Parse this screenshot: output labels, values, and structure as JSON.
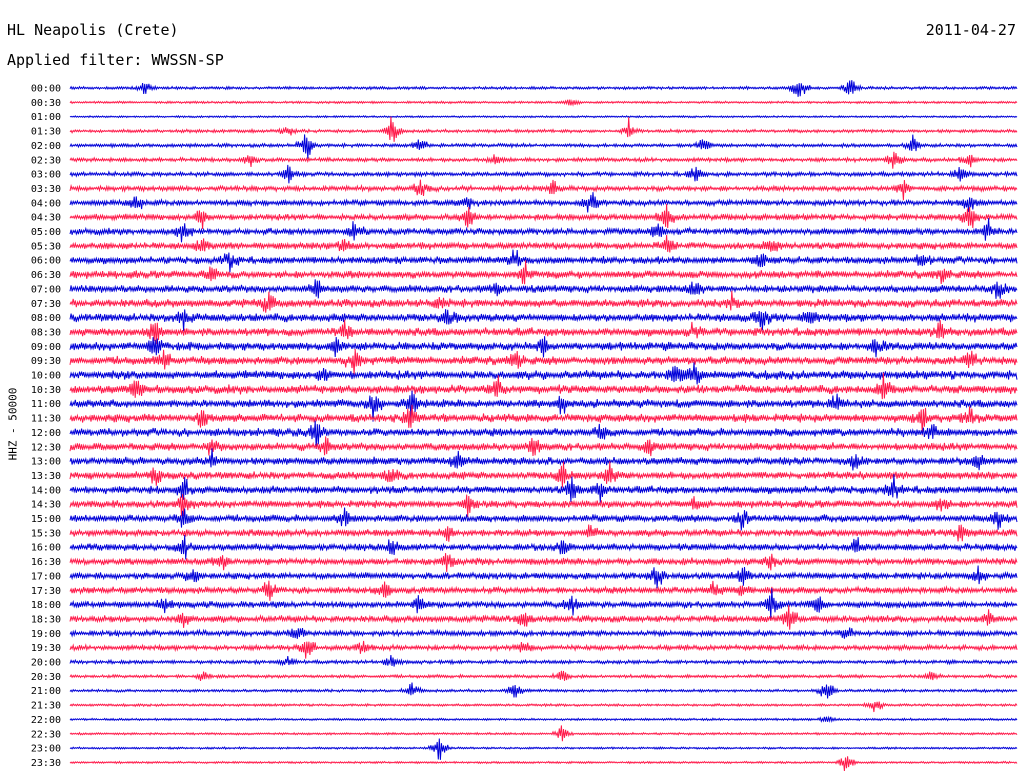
{
  "header": {
    "station": "HL Neapolis (Crete)",
    "filter": "Applied filter: WWSSN-SP",
    "date": "2011-04-27"
  },
  "chart_data": {
    "type": "line",
    "ylabel": "HHZ - 50000",
    "colors": [
      "#0000d8",
      "#ff1a4a"
    ],
    "rows": [
      {
        "label": "00:00",
        "level": 0.2,
        "events": [
          [
            0.08,
            0.5
          ],
          [
            0.77,
            1.0
          ],
          [
            0.825,
            1.0
          ]
        ]
      },
      {
        "label": "00:30",
        "level": 0.12,
        "events": [
          [
            0.53,
            0.4
          ]
        ]
      },
      {
        "label": "01:00",
        "level": 0.08,
        "events": []
      },
      {
        "label": "01:30",
        "level": 0.25,
        "events": [
          [
            0.23,
            0.4
          ],
          [
            0.34,
            0.9
          ],
          [
            0.59,
            0.7
          ]
        ]
      },
      {
        "label": "02:00",
        "level": 0.3,
        "events": [
          [
            0.25,
            1.2
          ],
          [
            0.37,
            0.5
          ],
          [
            0.67,
            0.6
          ],
          [
            0.89,
            0.6
          ]
        ]
      },
      {
        "label": "02:30",
        "level": 0.35,
        "events": [
          [
            0.19,
            0.6
          ],
          [
            0.45,
            0.4
          ],
          [
            0.87,
            0.8
          ],
          [
            0.95,
            0.6
          ]
        ]
      },
      {
        "label": "03:00",
        "level": 0.4,
        "events": [
          [
            0.23,
            0.6
          ],
          [
            0.66,
            0.6
          ],
          [
            0.94,
            0.6
          ]
        ]
      },
      {
        "label": "03:30",
        "level": 0.5,
        "events": [
          [
            0.37,
            0.7
          ],
          [
            0.51,
            0.5
          ],
          [
            0.88,
            0.6
          ]
        ]
      },
      {
        "label": "04:00",
        "level": 0.6,
        "events": [
          [
            0.07,
            0.7
          ],
          [
            0.42,
            0.7
          ],
          [
            0.55,
            0.9
          ],
          [
            0.95,
            0.6
          ]
        ]
      },
      {
        "label": "04:30",
        "level": 0.65,
        "events": [
          [
            0.14,
            0.9
          ],
          [
            0.42,
            0.8
          ],
          [
            0.63,
            0.8
          ],
          [
            0.95,
            1.0
          ]
        ]
      },
      {
        "label": "05:00",
        "level": 0.7,
        "events": [
          [
            0.12,
            0.8
          ],
          [
            0.3,
            0.7
          ],
          [
            0.62,
            0.6
          ],
          [
            0.97,
            0.8
          ]
        ]
      },
      {
        "label": "05:30",
        "level": 0.75,
        "events": [
          [
            0.14,
            0.6
          ],
          [
            0.29,
            0.7
          ],
          [
            0.63,
            0.6
          ],
          [
            0.74,
            0.6
          ]
        ]
      },
      {
        "label": "06:00",
        "level": 0.8,
        "events": [
          [
            0.17,
            0.6
          ],
          [
            0.47,
            0.7
          ],
          [
            0.73,
            0.6
          ],
          [
            0.9,
            0.6
          ]
        ]
      },
      {
        "label": "06:30",
        "level": 0.85,
        "events": [
          [
            0.15,
            0.7
          ],
          [
            0.48,
            0.7
          ],
          [
            0.92,
            0.6
          ]
        ]
      },
      {
        "label": "07:00",
        "level": 0.85,
        "events": [
          [
            0.26,
            0.7
          ],
          [
            0.45,
            0.6
          ],
          [
            0.66,
            0.6
          ],
          [
            0.98,
            0.6
          ]
        ]
      },
      {
        "label": "07:30",
        "level": 0.9,
        "events": [
          [
            0.21,
            0.8
          ],
          [
            0.39,
            0.6
          ],
          [
            0.7,
            0.6
          ]
        ]
      },
      {
        "label": "08:00",
        "level": 0.95,
        "events": [
          [
            0.12,
            0.8
          ],
          [
            0.4,
            0.7
          ],
          [
            0.73,
            0.9
          ],
          [
            0.78,
            0.6
          ]
        ]
      },
      {
        "label": "08:30",
        "level": 0.95,
        "events": [
          [
            0.09,
            0.9
          ],
          [
            0.29,
            0.7
          ],
          [
            0.66,
            0.6
          ],
          [
            0.92,
            0.6
          ]
        ]
      },
      {
        "label": "09:00",
        "level": 0.95,
        "events": [
          [
            0.09,
            0.8
          ],
          [
            0.28,
            0.6
          ],
          [
            0.5,
            0.6
          ],
          [
            0.85,
            0.7
          ]
        ]
      },
      {
        "label": "09:30",
        "level": 0.95,
        "events": [
          [
            0.1,
            0.7
          ],
          [
            0.3,
            0.7
          ],
          [
            0.47,
            0.8
          ],
          [
            0.95,
            0.6
          ]
        ]
      },
      {
        "label": "10:00",
        "level": 1.0,
        "events": [
          [
            0.27,
            0.7
          ],
          [
            0.64,
            0.8
          ],
          [
            0.66,
            0.8
          ]
        ]
      },
      {
        "label": "10:30",
        "level": 1.0,
        "events": [
          [
            0.07,
            0.8
          ],
          [
            0.45,
            0.8
          ],
          [
            0.86,
            0.8
          ]
        ]
      },
      {
        "label": "11:00",
        "level": 0.95,
        "events": [
          [
            0.32,
            0.8
          ],
          [
            0.36,
            0.9
          ],
          [
            0.52,
            0.6
          ],
          [
            0.81,
            0.6
          ]
        ]
      },
      {
        "label": "11:30",
        "level": 0.95,
        "events": [
          [
            0.14,
            0.8
          ],
          [
            0.36,
            0.9
          ],
          [
            0.9,
            0.8
          ],
          [
            0.95,
            0.7
          ]
        ]
      },
      {
        "label": "12:00",
        "level": 0.9,
        "events": [
          [
            0.26,
            0.9
          ],
          [
            0.56,
            0.6
          ],
          [
            0.91,
            0.6
          ]
        ]
      },
      {
        "label": "12:30",
        "level": 0.85,
        "events": [
          [
            0.15,
            0.6
          ],
          [
            0.27,
            0.6
          ],
          [
            0.49,
            0.7
          ],
          [
            0.61,
            0.6
          ]
        ]
      },
      {
        "label": "13:00",
        "level": 0.85,
        "events": [
          [
            0.15,
            0.6
          ],
          [
            0.41,
            0.7
          ],
          [
            0.83,
            0.6
          ],
          [
            0.96,
            0.7
          ]
        ]
      },
      {
        "label": "13:30",
        "level": 0.85,
        "events": [
          [
            0.09,
            0.6
          ],
          [
            0.34,
            0.6
          ],
          [
            0.52,
            0.9
          ],
          [
            0.57,
            0.7
          ]
        ]
      },
      {
        "label": "14:00",
        "level": 0.85,
        "events": [
          [
            0.12,
            0.7
          ],
          [
            0.53,
            0.9
          ],
          [
            0.56,
            0.8
          ],
          [
            0.87,
            0.8
          ]
        ]
      },
      {
        "label": "14:30",
        "level": 0.8,
        "events": [
          [
            0.12,
            0.8
          ],
          [
            0.42,
            0.7
          ],
          [
            0.66,
            0.6
          ],
          [
            0.92,
            0.6
          ]
        ]
      },
      {
        "label": "15:00",
        "level": 0.8,
        "events": [
          [
            0.12,
            0.7
          ],
          [
            0.29,
            0.6
          ],
          [
            0.71,
            0.7
          ],
          [
            0.98,
            0.7
          ]
        ]
      },
      {
        "label": "15:30",
        "level": 0.75,
        "events": [
          [
            0.4,
            0.6
          ],
          [
            0.55,
            0.6
          ],
          [
            0.94,
            0.6
          ]
        ]
      },
      {
        "label": "16:00",
        "level": 0.75,
        "events": [
          [
            0.12,
            0.7
          ],
          [
            0.34,
            0.8
          ],
          [
            0.52,
            0.6
          ],
          [
            0.83,
            0.6
          ]
        ]
      },
      {
        "label": "16:30",
        "level": 0.75,
        "events": [
          [
            0.16,
            0.6
          ],
          [
            0.4,
            0.7
          ],
          [
            0.74,
            0.6
          ]
        ]
      },
      {
        "label": "17:00",
        "level": 0.7,
        "events": [
          [
            0.13,
            0.6
          ],
          [
            0.62,
            0.8
          ],
          [
            0.71,
            0.7
          ],
          [
            0.96,
            0.6
          ]
        ]
      },
      {
        "label": "17:30",
        "level": 0.7,
        "events": [
          [
            0.21,
            0.8
          ],
          [
            0.33,
            0.6
          ],
          [
            0.68,
            0.6
          ],
          [
            0.71,
            0.6
          ]
        ]
      },
      {
        "label": "18:00",
        "level": 0.7,
        "events": [
          [
            0.1,
            0.7
          ],
          [
            0.37,
            0.7
          ],
          [
            0.53,
            0.7
          ],
          [
            0.74,
            0.9
          ],
          [
            0.79,
            0.7
          ]
        ]
      },
      {
        "label": "18:30",
        "level": 0.7,
        "events": [
          [
            0.12,
            0.6
          ],
          [
            0.48,
            0.8
          ],
          [
            0.76,
            1.0
          ],
          [
            0.97,
            0.6
          ]
        ]
      },
      {
        "label": "19:00",
        "level": 0.55,
        "events": [
          [
            0.24,
            0.6
          ],
          [
            0.82,
            0.6
          ]
        ]
      },
      {
        "label": "19:30",
        "level": 0.5,
        "events": [
          [
            0.25,
            0.9
          ],
          [
            0.31,
            0.5
          ],
          [
            0.48,
            0.5
          ]
        ]
      },
      {
        "label": "20:00",
        "level": 0.3,
        "events": [
          [
            0.23,
            0.4
          ],
          [
            0.34,
            0.6
          ]
        ]
      },
      {
        "label": "20:30",
        "level": 0.25,
        "events": [
          [
            0.14,
            0.4
          ],
          [
            0.52,
            0.5
          ],
          [
            0.91,
            0.4
          ]
        ]
      },
      {
        "label": "21:00",
        "level": 0.2,
        "events": [
          [
            0.36,
            0.6
          ],
          [
            0.47,
            0.6
          ],
          [
            0.8,
            0.9
          ]
        ]
      },
      {
        "label": "21:30",
        "level": 0.15,
        "events": [
          [
            0.85,
            0.6
          ]
        ]
      },
      {
        "label": "22:00",
        "level": 0.12,
        "events": [
          [
            0.8,
            0.4
          ]
        ]
      },
      {
        "label": "22:30",
        "level": 0.12,
        "events": [
          [
            0.52,
            0.7
          ]
        ]
      },
      {
        "label": "23:00",
        "level": 0.1,
        "events": [
          [
            0.39,
            1.0
          ]
        ]
      },
      {
        "label": "23:30",
        "level": 0.1,
        "events": [
          [
            0.82,
            0.8
          ]
        ]
      }
    ]
  }
}
